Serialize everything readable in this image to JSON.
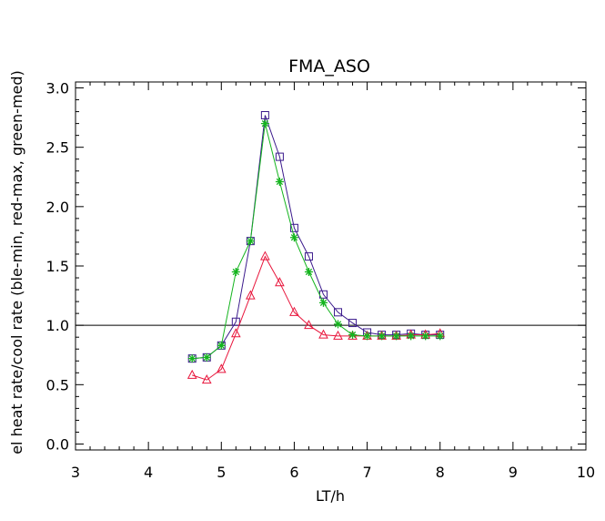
{
  "chart_data": {
    "type": "line",
    "title": "FMA_ASO",
    "xlabel": "LT/h",
    "ylabel": "el heat rate/cool rate (ble-min, red-max, green-med)",
    "xlim": [
      3,
      10
    ],
    "ylim": [
      -0.05,
      3.05
    ],
    "xticks": [
      "3",
      "4",
      "5",
      "6",
      "7",
      "8",
      "9",
      "10"
    ],
    "yticks": [
      "0.0",
      "0.5",
      "1.0",
      "1.5",
      "2.0",
      "2.5",
      "3.0"
    ],
    "reference_line": 1.0,
    "x": [
      4.6,
      4.8,
      5.0,
      5.2,
      5.4,
      5.6,
      5.8,
      6.0,
      6.2,
      6.4,
      6.6,
      6.8,
      7.0,
      7.2,
      7.4,
      7.6,
      7.8,
      8.0
    ],
    "series": [
      {
        "color": "#3b1a8c",
        "marker": "square",
        "values": [
          0.72,
          0.73,
          0.83,
          1.03,
          1.71,
          2.77,
          2.42,
          1.82,
          1.58,
          1.26,
          1.11,
          1.02,
          0.94,
          0.92,
          0.92,
          0.93,
          0.92,
          0.92
        ]
      },
      {
        "color": "#e8163c",
        "marker": "triangle",
        "values": [
          0.58,
          0.54,
          0.63,
          0.93,
          1.25,
          1.58,
          1.36,
          1.11,
          1.0,
          0.92,
          0.91,
          0.91,
          0.91,
          0.91,
          0.91,
          0.92,
          0.92,
          0.93
        ]
      },
      {
        "color": "#14b41e",
        "marker": "asterisk",
        "values": [
          0.72,
          0.73,
          0.83,
          1.45,
          1.71,
          2.7,
          2.21,
          1.74,
          1.45,
          1.19,
          1.01,
          0.92,
          0.91,
          0.91,
          0.91,
          0.91,
          0.91,
          0.91
        ]
      }
    ]
  }
}
